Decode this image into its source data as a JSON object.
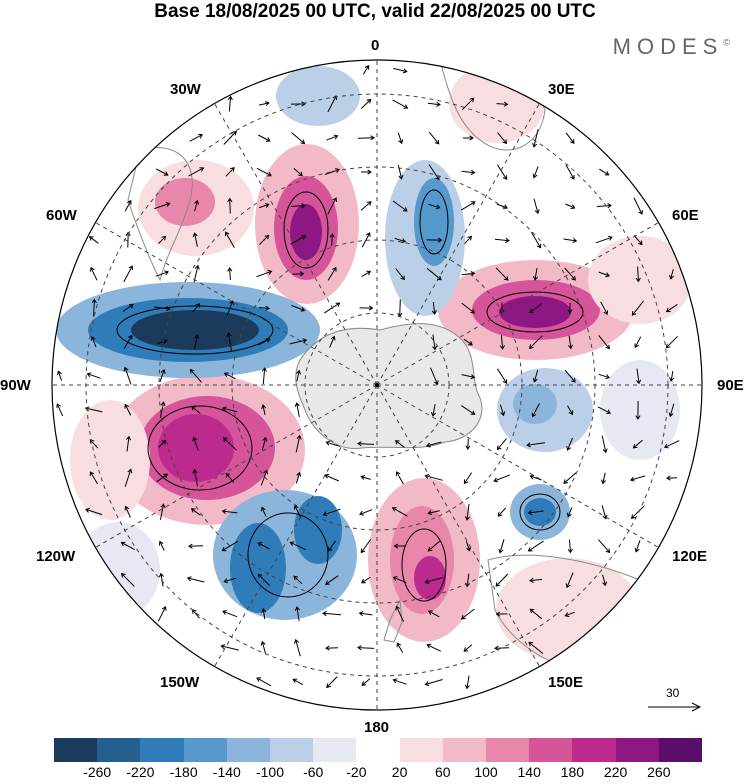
{
  "title": "Base 18/08/2025 00 UTC, valid 22/08/2025 00 UTC",
  "brand": "MODES",
  "brand_mark": "©",
  "longitude_labels": {
    "top": "0",
    "bottom": "180",
    "left": "90W",
    "right": "90E",
    "upper_left_1": "30W",
    "upper_left_2": "60W",
    "lower_left_1": "120W",
    "lower_left_2": "150W",
    "upper_right_1": "30E",
    "upper_right_2": "60E",
    "lower_right_1": "120E",
    "lower_right_2": "150E"
  },
  "reference_vector": "30",
  "colorbar": {
    "ticks": [
      "-260",
      "-220",
      "-180",
      "-140",
      "-100",
      "-60",
      "-20",
      "20",
      "60",
      "100",
      "140",
      "180",
      "220",
      "260"
    ],
    "colors": [
      "#1a3b5c",
      "#245f90",
      "#2f7cb8",
      "#5699cc",
      "#8cb5dc",
      "#bccfe8",
      "#e6e8f2",
      "#ffffff",
      "#f8dde1",
      "#f2b9c6",
      "#e886ac",
      "#d6559a",
      "#bb2a8c",
      "#8e1883",
      "#5b0d6c"
    ]
  },
  "colors": {
    "land": "#e8e8e8",
    "coast": "#8a8a8a",
    "grid": "#444444"
  }
}
